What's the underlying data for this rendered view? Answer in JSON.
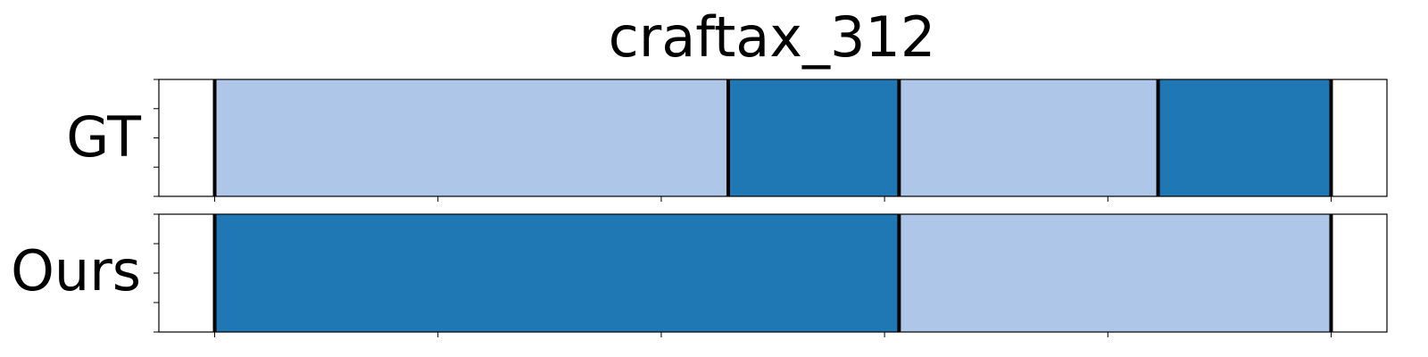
{
  "chart_data": {
    "type": "segmentation-timeline",
    "title": "craftax_312",
    "x_range": [
      -0.5,
      10.5
    ],
    "tick_positions": [
      0,
      2,
      4,
      6,
      8,
      10
    ],
    "colors": {
      "light": "#aec7e8",
      "dark": "#1f77b4",
      "boundary": "#000000"
    },
    "rows": [
      {
        "label": "GT",
        "segments": [
          {
            "start": 0,
            "end": 4.6,
            "class": "light"
          },
          {
            "start": 4.6,
            "end": 6.13,
            "class": "dark"
          },
          {
            "start": 6.13,
            "end": 8.45,
            "class": "light"
          },
          {
            "start": 8.45,
            "end": 10,
            "class": "dark"
          }
        ],
        "boundaries": [
          0,
          4.6,
          6.13,
          8.45,
          10
        ]
      },
      {
        "label": "Ours",
        "segments": [
          {
            "start": 0,
            "end": 6.13,
            "class": "dark"
          },
          {
            "start": 6.13,
            "end": 10,
            "class": "light"
          }
        ],
        "boundaries": [
          0,
          6.13,
          10
        ]
      }
    ]
  }
}
